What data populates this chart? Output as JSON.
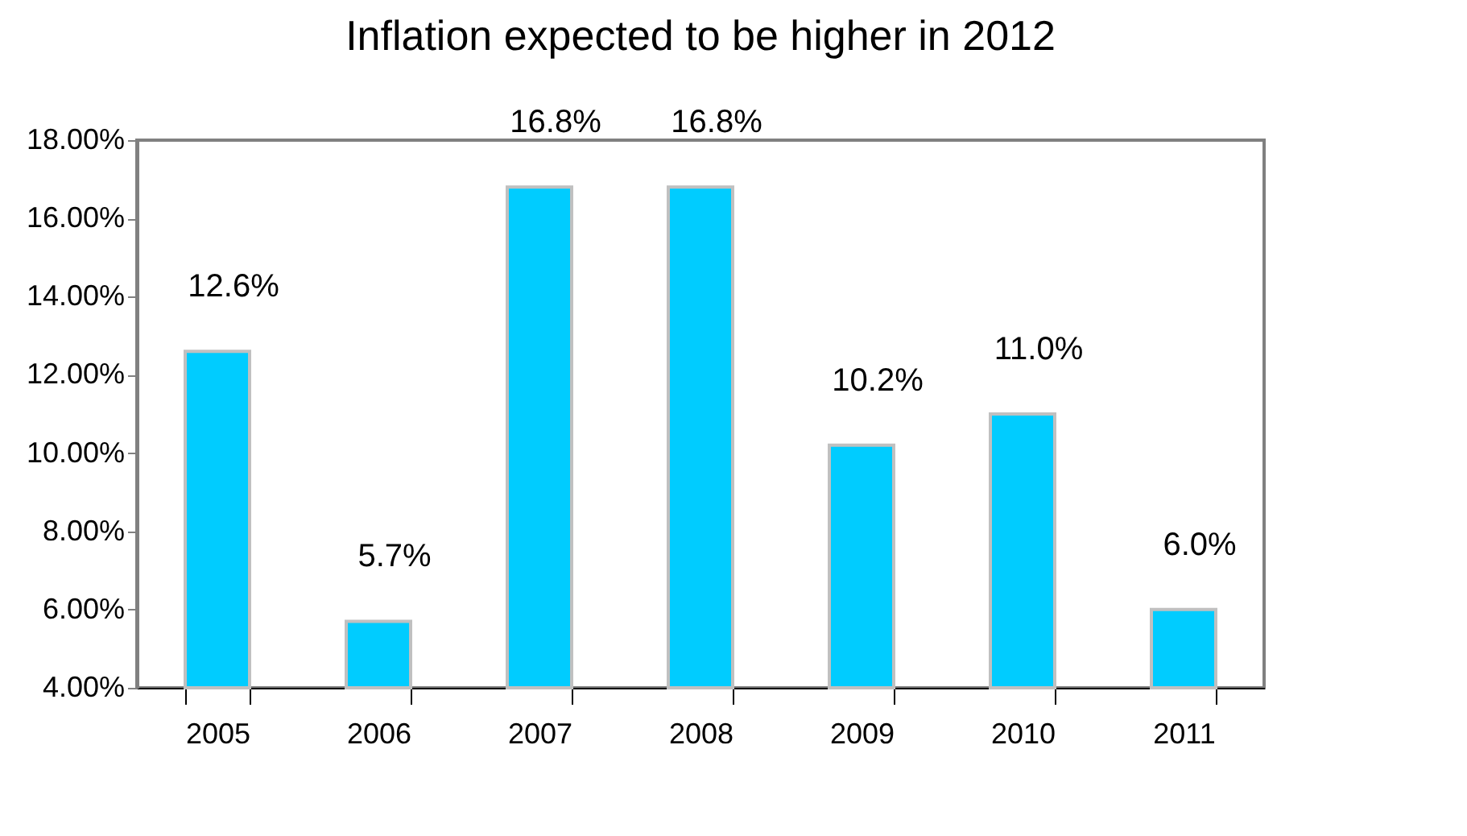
{
  "chart_data": {
    "type": "bar",
    "title": "Inflation expected to be higher in 2012",
    "categories": [
      "2005",
      "2006",
      "2007",
      "2008",
      "2009",
      "2010",
      "2011"
    ],
    "values": [
      12.6,
      5.7,
      16.8,
      16.8,
      10.2,
      11.0,
      6.0
    ],
    "value_labels": [
      "12.6%",
      "5.7%",
      "16.8%",
      "16.8%",
      "10.2%",
      "11.0%",
      "6.0%"
    ],
    "color": "#00ccff",
    "ylim": [
      4,
      18
    ],
    "yticks": [
      {
        "value": 4,
        "label": "4.00%"
      },
      {
        "value": 6,
        "label": "6.00%"
      },
      {
        "value": 8,
        "label": "8.00%"
      },
      {
        "value": 10,
        "label": "10.00%"
      },
      {
        "value": 12,
        "label": "12.00%"
      },
      {
        "value": 14,
        "label": "14.00%"
      },
      {
        "value": 16,
        "label": "16.00%"
      },
      {
        "value": 18,
        "label": "18.00%"
      }
    ],
    "grid": false
  }
}
